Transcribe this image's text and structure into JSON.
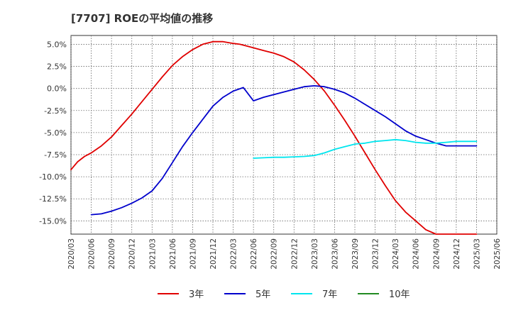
{
  "chart_data": {
    "type": "line",
    "title": "[7707]  ROEの平均値の推移",
    "xlabel": "",
    "ylabel": "",
    "x_ticks": [
      "2020/03",
      "2020/06",
      "2020/09",
      "2020/12",
      "2021/03",
      "2021/06",
      "2021/09",
      "2021/12",
      "2022/03",
      "2022/06",
      "2022/09",
      "2022/12",
      "2023/03",
      "2023/06",
      "2023/09",
      "2023/12",
      "2024/03",
      "2024/06",
      "2024/09",
      "2024/12",
      "2025/03",
      "2025/06"
    ],
    "y_ticks": [
      "5.0%",
      "2.5%",
      "0.0%",
      "-2.5%",
      "-5.0%",
      "-7.5%",
      "-10.0%",
      "-12.5%",
      "-15.0%"
    ],
    "y_tick_values": [
      5.0,
      2.5,
      0.0,
      -2.5,
      -5.0,
      -7.5,
      -10.0,
      -12.5,
      -15.0
    ],
    "xlim": [
      0,
      21
    ],
    "ylim": [
      -16.5,
      6.0
    ],
    "grid": true,
    "legend_position": "bottom",
    "series": [
      {
        "name": "3年",
        "color": "#e00000",
        "x": [
          0,
          0.33,
          0.67,
          1,
          1.5,
          2,
          2.5,
          3,
          3.5,
          4,
          4.5,
          5,
          5.5,
          6,
          6.5,
          7,
          7.5,
          8,
          8.33,
          8.67,
          9,
          9.5,
          10,
          10.5,
          11,
          11.5,
          12,
          12.5,
          13,
          13.5,
          14,
          14.5,
          15,
          15.5,
          16,
          16.5,
          17,
          17.5,
          18,
          18.5,
          19,
          19.5,
          20
        ],
        "values": [
          -9.2,
          -8.3,
          -7.7,
          -7.3,
          -6.5,
          -5.5,
          -4.2,
          -2.9,
          -1.5,
          -0.1,
          1.3,
          2.6,
          3.6,
          4.4,
          5.0,
          5.3,
          5.3,
          5.1,
          5.0,
          4.8,
          4.6,
          4.3,
          4.0,
          3.6,
          3.0,
          2.1,
          1.0,
          -0.3,
          -1.9,
          -3.6,
          -5.4,
          -7.3,
          -9.2,
          -11.0,
          -12.7,
          -14.0,
          -15.0,
          -16.0,
          -16.5,
          -16.5,
          -16.5,
          -16.5,
          -16.5
        ],
        "x_end": 20,
        "data_end_index": 29
      },
      {
        "name": "5年",
        "color": "#0000cc",
        "x": [
          1,
          1.5,
          2,
          2.5,
          3,
          3.5,
          4,
          4.5,
          5,
          5.5,
          6,
          6.5,
          7,
          7.5,
          8,
          8.5,
          9,
          9.5,
          10,
          10.5,
          11,
          11.5,
          12,
          12.5,
          13,
          13.5,
          14,
          14.5,
          15,
          15.5,
          16,
          16.5,
          17,
          17.5,
          18,
          18.5,
          19,
          19.5,
          20
        ],
        "values": [
          -14.3,
          -14.2,
          -13.9,
          -13.5,
          -13.0,
          -12.4,
          -11.6,
          -10.2,
          -8.4,
          -6.6,
          -5.0,
          -3.5,
          -2.0,
          -1.0,
          -0.3,
          0.1,
          -1.4,
          -1.0,
          -0.7,
          -0.4,
          -0.1,
          0.2,
          0.3,
          0.2,
          -0.1,
          -0.5,
          -1.1,
          -1.8,
          -2.5,
          -3.2,
          -4.0,
          -4.8,
          -5.4,
          -5.8,
          -6.2,
          -6.5,
          -6.5,
          -6.5,
          -6.5
        ]
      },
      {
        "name": "7年",
        "color": "#00e5ee",
        "x": [
          9,
          9.5,
          10,
          10.5,
          11,
          11.5,
          12,
          12.5,
          13,
          13.5,
          14,
          14.5,
          15,
          15.5,
          16,
          16.5,
          17,
          17.5,
          18,
          18.5,
          19,
          19.5,
          20
        ],
        "values": [
          -7.9,
          -7.85,
          -7.8,
          -7.8,
          -7.75,
          -7.7,
          -7.6,
          -7.3,
          -6.9,
          -6.6,
          -6.3,
          -6.2,
          -6.0,
          -5.9,
          -5.8,
          -5.9,
          -6.1,
          -6.2,
          -6.2,
          -6.1,
          -6.0,
          -6.0,
          -6.0
        ]
      },
      {
        "name": "10年",
        "color": "#228b22",
        "x": [],
        "values": []
      }
    ]
  }
}
